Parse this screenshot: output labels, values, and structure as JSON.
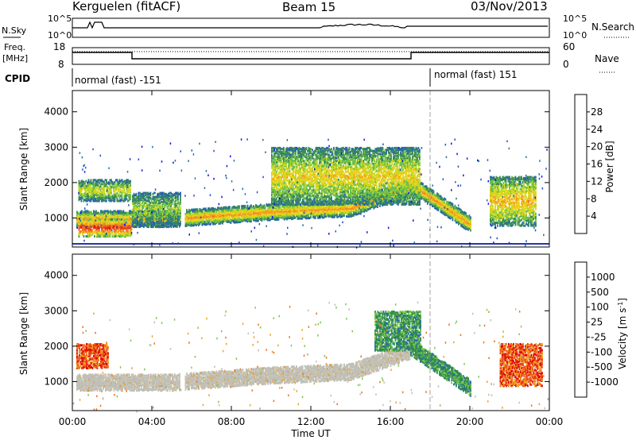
{
  "header": {
    "station": "Kerguelen (fitACF)",
    "beam": "Beam 15",
    "date": "03/Nov/2013"
  },
  "noise_panel": {
    "left_label": "N.Sky",
    "left_ticks": [
      "10^5",
      "10^0"
    ],
    "right_label": "N.Search",
    "right_ticks": [
      "10^5",
      "10^0"
    ]
  },
  "freq_panel": {
    "left_label_1": "Freq.",
    "left_label_2": "[MHz]",
    "left_ticks": [
      "18",
      "8"
    ],
    "right_label": "Nave",
    "right_ticks": [
      "60",
      "0"
    ]
  },
  "cpid": {
    "label": "CPID",
    "segments": [
      {
        "text": "normal (fast) -151",
        "start_hour": 0
      },
      {
        "text": "normal (fast) 151",
        "start_hour": 18
      }
    ]
  },
  "chart_data": [
    {
      "type": "heatmap",
      "name": "power",
      "ylabel": "Slant Range [km]",
      "x_ticks": [
        "00:00",
        "04:00",
        "08:00",
        "12:00",
        "16:00",
        "20:00",
        "00:00"
      ],
      "xlim_hours": [
        0,
        24
      ],
      "ylim_km": [
        180,
        4600
      ],
      "y_ticks": [
        1000,
        2000,
        3000,
        4000
      ],
      "colorbar": {
        "label": "Power [dB]",
        "ticks": [
          "4",
          "8",
          "12",
          "16",
          "20",
          "24",
          "28"
        ],
        "range": [
          0,
          30
        ],
        "colors": [
          "#1010f0",
          "#2050c8",
          "#2a6e9c",
          "#3d8a5a",
          "#6cc04a",
          "#c8d820",
          "#f0d020",
          "#f0a020",
          "#f07020",
          "#e84020",
          "#e00000"
        ]
      },
      "features": [
        {
          "kind": "band",
          "start_hour": 0.2,
          "end_hour": 17.0,
          "center_km": [
            1000,
            1000,
            1200,
            1300,
            1900
          ],
          "center_hours": [
            0.2,
            5.0,
            10.0,
            14.0,
            17.0
          ],
          "peak_db": 22
        },
        {
          "kind": "band",
          "start_hour": 17.0,
          "end_hour": 20.0,
          "center_km": [
            2000,
            850
          ],
          "center_hours": [
            17.0,
            20.0
          ],
          "peak_db": 22
        },
        {
          "kind": "patch",
          "start_hour": 0.3,
          "end_hour": 3.0,
          "low_km": 500,
          "high_km": 1000,
          "peak_db": 28
        },
        {
          "kind": "patch",
          "start_hour": 0.3,
          "end_hour": 2.9,
          "low_km": 1500,
          "high_km": 2100,
          "peak_db": 16
        },
        {
          "kind": "patch",
          "start_hour": 3.0,
          "end_hour": 5.4,
          "low_km": 800,
          "high_km": 1750,
          "peak_db": 14
        },
        {
          "kind": "patch",
          "start_hour": 10.0,
          "end_hour": 17.5,
          "low_km": 1400,
          "high_km": 3000,
          "peak_db": 18
        },
        {
          "kind": "patch",
          "start_hour": 21.0,
          "end_hour": 23.3,
          "low_km": 800,
          "high_km": 2200,
          "peak_db": 20
        }
      ]
    },
    {
      "type": "heatmap",
      "name": "velocity",
      "xlabel": "Time UT",
      "ylabel": "Slant Range [km]",
      "x_ticks": [
        "00:00",
        "04:00",
        "08:00",
        "12:00",
        "16:00",
        "20:00",
        "00:00"
      ],
      "xlim_hours": [
        0,
        24
      ],
      "ylim_km": [
        180,
        4600
      ],
      "y_ticks": [
        1000,
        2000,
        3000,
        4000
      ],
      "colorbar": {
        "label": "Velocity [m s^-1]",
        "ticks": [
          "1000",
          "500",
          "100",
          "25",
          "-25",
          "-100",
          "-500",
          "-1000"
        ],
        "colors": [
          "#1030c0",
          "#2a6ea0",
          "#2f8c46",
          "#7ac84a",
          "#c0c0b8",
          "#f0d020",
          "#f0a020",
          "#f07020",
          "#e84020",
          "#e00000"
        ]
      },
      "features": [
        {
          "kind": "band",
          "start_hour": 0.2,
          "end_hour": 17.0,
          "center_km": [
            1000,
            1000,
            1200,
            1300,
            1900
          ],
          "center_hours": [
            0.2,
            5.0,
            10.0,
            14.0,
            17.0
          ],
          "color": "ground-grey"
        },
        {
          "kind": "band",
          "start_hour": 17.0,
          "end_hour": 20.0,
          "center_km": [
            2000,
            850
          ],
          "center_hours": [
            17.0,
            20.0
          ],
          "color": "green"
        },
        {
          "kind": "patch",
          "start_hour": 0.2,
          "end_hour": 1.8,
          "low_km": 1400,
          "high_km": 2100,
          "color": "orange"
        },
        {
          "kind": "patch",
          "start_hour": 21.5,
          "end_hour": 23.6,
          "low_km": 900,
          "high_km": 2100,
          "color": "orange"
        },
        {
          "kind": "patch",
          "start_hour": 15.2,
          "end_hour": 17.5,
          "low_km": 1900,
          "high_km": 3000,
          "color": "green"
        }
      ]
    }
  ],
  "colors": {
    "panel_frame": "#000000",
    "marker_line": "#8c8c8c",
    "ground_scatter": "#c0c0b8"
  }
}
